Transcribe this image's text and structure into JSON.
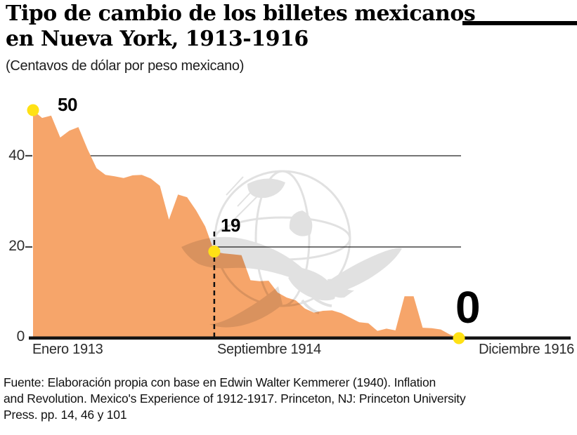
{
  "header": {
    "title_line1": "Tipo de cambio de los billetes mexicanos",
    "title_line2": "en Nueva York, 1913-1916",
    "subtitle": "(Centavos de dólar por peso mexicano)"
  },
  "chart_data": {
    "type": "area",
    "title": "Tipo de cambio de los billetes mexicanos en Nueva York, 1913-1916",
    "unit_label": "(Centavos de dólar por peso mexicano)",
    "x_unit": "month",
    "x_range": [
      "Enero 1913",
      "Diciembre 1916"
    ],
    "x_start_label": "Enero 1913",
    "x_mid_label": "Septiembre 1914",
    "x_end_label": "Diciembre 1916",
    "y_tick_labels": [
      "40",
      "20",
      "0"
    ],
    "grid_levels": [
      40,
      20
    ],
    "ylim": [
      0,
      52
    ],
    "series": [
      {
        "name": "Centavos de dólar por peso mexicano",
        "values": [
          50,
          48.3,
          48.8,
          44,
          45.5,
          46.3,
          41.5,
          37.3,
          35.8,
          35.5,
          35.1,
          35.7,
          35.8,
          35,
          33.4,
          26,
          31.5,
          30.9,
          28,
          24.5,
          19,
          18.6,
          18.4,
          18.2,
          12.7,
          12.5,
          12.6,
          10,
          8.9,
          8.3,
          6.5,
          5.6,
          6.0,
          6.1,
          5.5,
          4.5,
          3.5,
          3.3,
          1.6,
          2.1,
          1.7,
          9.2,
          9.2,
          2.3,
          2.2,
          1.9,
          0.8,
          0
        ]
      }
    ],
    "markers": [
      {
        "label": "50",
        "x_label": "Enero 1913",
        "month_index": 0,
        "value": 50
      },
      {
        "label": "19",
        "x_label": "Septiembre 1914",
        "month_index": 20,
        "value": 19,
        "dashed_reference_line": true
      },
      {
        "label": "0",
        "x_label": "Diciembre 1916",
        "month_index": 47,
        "value": 0
      }
    ],
    "colors": {
      "area": "#F6A56A",
      "marker": "#FFE115",
      "grid": "#474747",
      "axis": "#141414",
      "watermark": "#c4c4c4"
    },
    "legend": "none",
    "grid": "horizontal-only"
  },
  "source": {
    "line1": "Fuente: Elaboración propia con base en Edwin Walter Kemmerer (1940). Inflation",
    "line2": "and Revolution. Mexico's Experience of 1912-1917. Princeton, NJ: Princeton University",
    "line3": "Press. pp. 14, 46 y 101"
  }
}
